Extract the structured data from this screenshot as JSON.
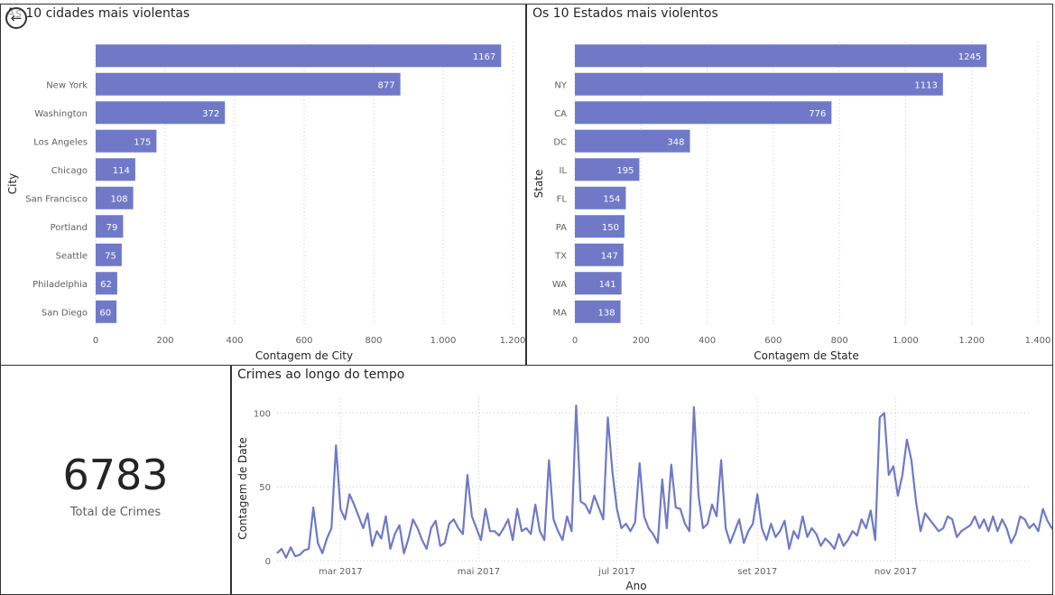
{
  "page": {
    "bar_color": "#6F79C7",
    "line_color": "#6F79C7",
    "grid_color": "#C8C8C8"
  },
  "back_button": {
    "icon": "back-arrow-icon",
    "glyph": "←"
  },
  "kpi": {
    "value": "6783",
    "label": "Total de Crimes"
  },
  "chart_data": [
    {
      "type": "bar",
      "orientation": "horizontal",
      "title": "As 10 cidades mais violentas",
      "xlabel": "Contagem de City",
      "ylabel": "City",
      "categories": [
        "",
        "New York",
        "Washington",
        "Los Angeles",
        "Chicago",
        "San Francisco",
        "Portland",
        "Seattle",
        "Philadelphia",
        "San Diego"
      ],
      "values": [
        1167,
        877,
        372,
        175,
        114,
        108,
        79,
        75,
        62,
        60
      ],
      "xlim": [
        0,
        1200
      ],
      "xticks": [
        0,
        200,
        400,
        600,
        800,
        1000,
        1200
      ],
      "xtick_labels": [
        "0",
        "200",
        "400",
        "600",
        "800",
        "1.000",
        "1.200"
      ],
      "grid": true
    },
    {
      "type": "bar",
      "orientation": "horizontal",
      "title": "Os 10 Estados mais violentos",
      "xlabel": "Contagem de State",
      "ylabel": "State",
      "categories": [
        "",
        "NY",
        "CA",
        "DC",
        "IL",
        "FL",
        "PA",
        "TX",
        "WA",
        "MA"
      ],
      "values": [
        1245,
        1113,
        776,
        348,
        195,
        154,
        150,
        147,
        141,
        138
      ],
      "xlim": [
        0,
        1400
      ],
      "xticks": [
        0,
        200,
        400,
        600,
        800,
        1000,
        1200,
        1400
      ],
      "xtick_labels": [
        "0",
        "200",
        "400",
        "600",
        "800",
        "1.000",
        "1.200",
        "1.400"
      ],
      "grid": true
    },
    {
      "type": "line",
      "title": "Crimes ao longo do tempo",
      "xlabel": "Ano",
      "ylabel": "Contagem de Date",
      "x_start": "2017-02-01",
      "x_end": "2017-12-31",
      "x_step": "2 days",
      "xtick_dates": [
        "2017-03-01",
        "2017-05-01",
        "2017-07-01",
        "2017-09-01",
        "2017-11-01"
      ],
      "xtick_labels": [
        "mar 2017",
        "mai 2017",
        "jul 2017",
        "set 2017",
        "nov 2017"
      ],
      "ylim": [
        0,
        110
      ],
      "yticks": [
        0,
        50,
        100
      ],
      "ytick_labels": [
        "0",
        "50",
        "100"
      ],
      "grid": true,
      "values": [
        5,
        8,
        2,
        9,
        3,
        4,
        7,
        8,
        36,
        12,
        5,
        15,
        22,
        78,
        35,
        28,
        45,
        38,
        30,
        22,
        32,
        10,
        20,
        15,
        30,
        8,
        18,
        24,
        5,
        15,
        28,
        22,
        14,
        8,
        22,
        27,
        10,
        12,
        25,
        28,
        22,
        18,
        58,
        30,
        22,
        14,
        35,
        20,
        20,
        17,
        22,
        28,
        14,
        35,
        20,
        22,
        18,
        38,
        20,
        14,
        68,
        28,
        20,
        14,
        30,
        20,
        105,
        40,
        38,
        32,
        44,
        36,
        28,
        97,
        60,
        35,
        22,
        25,
        20,
        26,
        66,
        30,
        22,
        18,
        12,
        55,
        22,
        65,
        36,
        35,
        25,
        20,
        104,
        44,
        22,
        25,
        38,
        30,
        68,
        22,
        12,
        20,
        28,
        12,
        20,
        25,
        45,
        22,
        14,
        25,
        16,
        20,
        27,
        8,
        20,
        15,
        30,
        16,
        22,
        18,
        10,
        15,
        12,
        8,
        18,
        10,
        14,
        20,
        17,
        28,
        22,
        34,
        14,
        97,
        100,
        58,
        64,
        44,
        58,
        82,
        68,
        40,
        20,
        32,
        28,
        24,
        20,
        22,
        30,
        28,
        16,
        20,
        22,
        24,
        30,
        22,
        28,
        20,
        30,
        20,
        28,
        22,
        12,
        18,
        30,
        28,
        22,
        25,
        20,
        35,
        27,
        22,
        18,
        28,
        24,
        22,
        66,
        38,
        30,
        22,
        35,
        40,
        30,
        22,
        18,
        24,
        70,
        35,
        28,
        22,
        55,
        38,
        20,
        40,
        36,
        18,
        30,
        78,
        84,
        40,
        22,
        35,
        28,
        22,
        18,
        30,
        98,
        40,
        22,
        28,
        36,
        30,
        22,
        18,
        25,
        20,
        12,
        35,
        38,
        18,
        76,
        20,
        22,
        38,
        15,
        22,
        5
      ]
    }
  ]
}
